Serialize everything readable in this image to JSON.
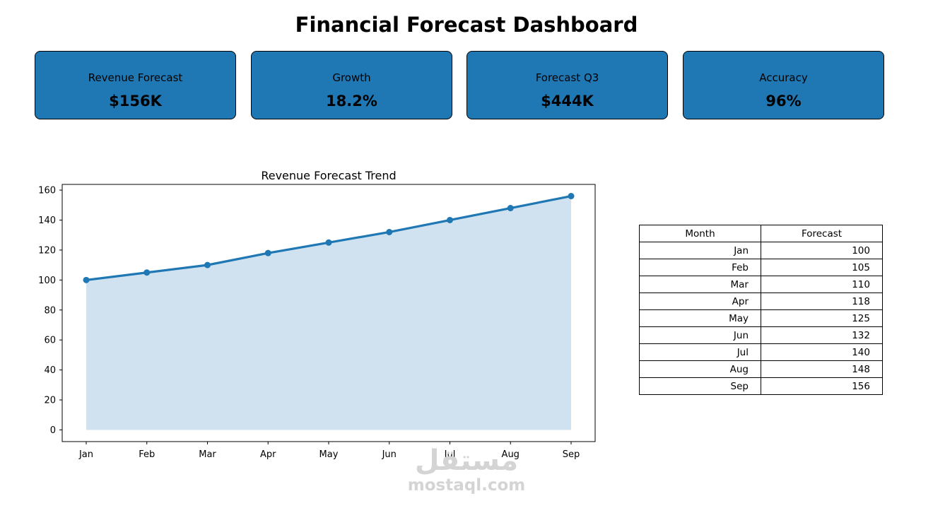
{
  "dashboard": {
    "title": "Financial Forecast Dashboard"
  },
  "kpis": [
    {
      "label": "Revenue Forecast",
      "value": "$156K"
    },
    {
      "label": "Growth",
      "value": "18.2%"
    },
    {
      "label": "Forecast Q3",
      "value": "$444K"
    },
    {
      "label": "Accuracy",
      "value": "96%"
    }
  ],
  "colors": {
    "accent": "#1f77b4",
    "fill": "#d0e2f0"
  },
  "chart_data": {
    "type": "line",
    "title": "Revenue Forecast Trend",
    "xlabel": "",
    "ylabel": "",
    "categories": [
      "Jan",
      "Feb",
      "Mar",
      "Apr",
      "May",
      "Jun",
      "Jul",
      "Aug",
      "Sep"
    ],
    "values": [
      100,
      105,
      110,
      118,
      125,
      132,
      140,
      148,
      156
    ],
    "yticks": [
      0,
      20,
      40,
      60,
      80,
      100,
      120,
      140,
      160
    ],
    "ylim": [
      -7.8,
      163.8
    ],
    "area_fill": true,
    "markers": true,
    "grid": false
  },
  "table": {
    "headers": [
      "Month",
      "Forecast"
    ],
    "rows": [
      [
        "Jan",
        "100"
      ],
      [
        "Feb",
        "105"
      ],
      [
        "Mar",
        "110"
      ],
      [
        "Apr",
        "118"
      ],
      [
        "May",
        "125"
      ],
      [
        "Jun",
        "132"
      ],
      [
        "Jul",
        "140"
      ],
      [
        "Aug",
        "148"
      ],
      [
        "Sep",
        "156"
      ]
    ]
  },
  "watermark": {
    "logo": "مستقل",
    "text": "mostaql.com"
  }
}
